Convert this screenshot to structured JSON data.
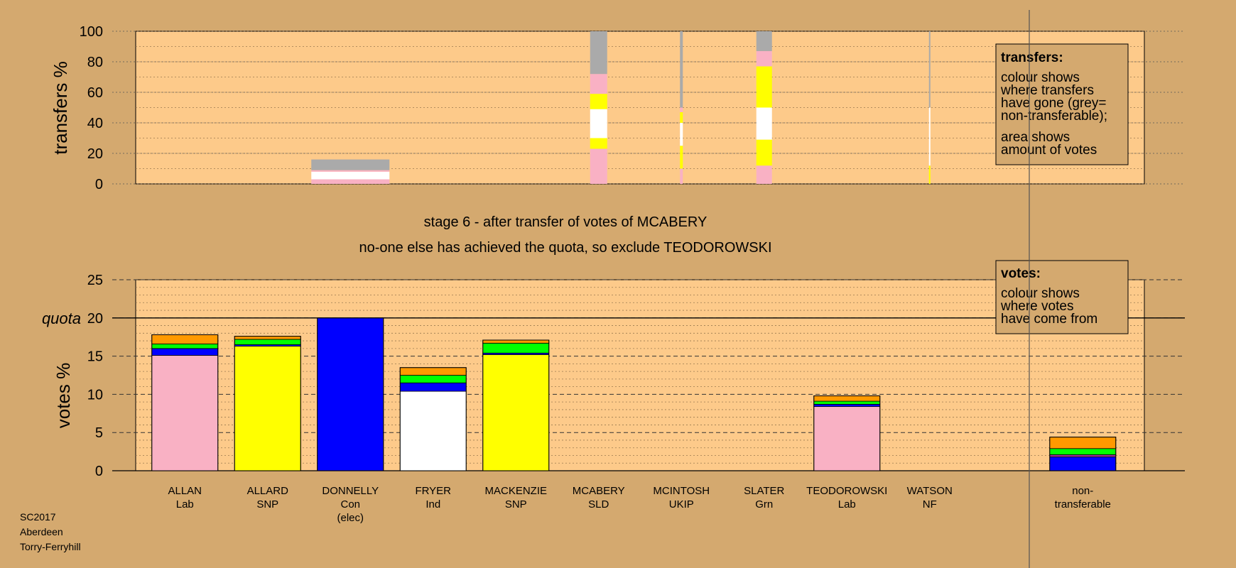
{
  "chart_data": [
    {
      "type": "bar",
      "stacked": true,
      "panel": "transfers",
      "ylabel": "transfers %",
      "ylim": [
        0,
        100
      ],
      "yticks": [
        0,
        20,
        40,
        60,
        80,
        100
      ],
      "legend": {
        "placement": "top-right",
        "title": "transfers:",
        "lines1": [
          "colour shows",
          "where transfers",
          "have gone (grey=",
          "non-transferable);"
        ],
        "lines2": [
          "area shows",
          "amount of votes"
        ]
      },
      "bars": [
        {
          "candidate": "DONNELLY",
          "segments": [
            {
              "party": "Lab",
              "from": 0,
              "to": 3
            },
            {
              "party": "Ind",
              "from": 3,
              "to": 8
            },
            {
              "party": "Lab",
              "from": 8,
              "to": 9
            },
            {
              "party": "non",
              "from": 9,
              "to": 16
            }
          ]
        },
        {
          "candidate": "MCABERY",
          "segments": [
            {
              "party": "Lab",
              "from": 0,
              "to": 23
            },
            {
              "party": "SNP",
              "from": 23,
              "to": 30
            },
            {
              "party": "Ind",
              "from": 30,
              "to": 49
            },
            {
              "party": "SNP",
              "from": 49,
              "to": 59
            },
            {
              "party": "Lab",
              "from": 59,
              "to": 72
            },
            {
              "party": "non",
              "from": 72,
              "to": 100
            }
          ]
        },
        {
          "candidate": "MCINTOSH",
          "segments": [
            {
              "party": "Lab",
              "from": 0,
              "to": 10
            },
            {
              "party": "SNP",
              "from": 10,
              "to": 25
            },
            {
              "party": "Ind",
              "from": 25,
              "to": 40
            },
            {
              "party": "SNP",
              "from": 40,
              "to": 47
            },
            {
              "party": "Lab",
              "from": 47,
              "to": 50
            },
            {
              "party": "non",
              "from": 50,
              "to": 100
            }
          ]
        },
        {
          "candidate": "SLATER",
          "segments": [
            {
              "party": "Lab",
              "from": 0,
              "to": 12
            },
            {
              "party": "SNP",
              "from": 12,
              "to": 29
            },
            {
              "party": "Ind",
              "from": 29,
              "to": 50
            },
            {
              "party": "SNP",
              "from": 50,
              "to": 77
            },
            {
              "party": "Lab",
              "from": 77,
              "to": 87
            },
            {
              "party": "non",
              "from": 87,
              "to": 100
            }
          ]
        },
        {
          "candidate": "WATSON",
          "segments": [
            {
              "party": "SNP",
              "from": 0,
              "to": 12
            },
            {
              "party": "Ind",
              "from": 12,
              "to": 50
            },
            {
              "party": "non",
              "from": 50,
              "to": 100
            }
          ]
        }
      ]
    },
    {
      "type": "bar",
      "stacked": true,
      "panel": "votes",
      "ylabel": "votes %",
      "ylim": [
        0,
        25
      ],
      "yticks": [
        0,
        5,
        10,
        15,
        20,
        25
      ],
      "quota": 20,
      "quota_label": "quota",
      "legend": {
        "placement": "top-right",
        "title": "votes:",
        "lines": [
          "colour shows",
          "where votes",
          "have come from"
        ]
      },
      "bars": [
        {
          "candidate": "ALLAN",
          "party": "Lab",
          "segments": [
            {
              "party": "Lab",
              "value": 15.1
            },
            {
              "party": "Con",
              "value": 0.9
            },
            {
              "party": "Grn",
              "value": 0.6
            },
            {
              "party": "UKIP",
              "value": 1.2
            }
          ]
        },
        {
          "candidate": "ALLARD",
          "party": "SNP",
          "segments": [
            {
              "party": "SNP",
              "value": 16.3
            },
            {
              "party": "Con",
              "value": 0.2
            },
            {
              "party": "Grn",
              "value": 0.7
            },
            {
              "party": "UKIP",
              "value": 0.4
            }
          ]
        },
        {
          "candidate": "DONNELLY",
          "party": "Con",
          "segments": [
            {
              "party": "Con",
              "value": 20.0
            }
          ]
        },
        {
          "candidate": "FRYER",
          "party": "Ind",
          "segments": [
            {
              "party": "Ind",
              "value": 10.4
            },
            {
              "party": "Con",
              "value": 1.1
            },
            {
              "party": "Grn",
              "value": 1.0
            },
            {
              "party": "UKIP",
              "value": 1.0
            }
          ]
        },
        {
          "candidate": "MACKENZIE",
          "party": "SNP",
          "segments": [
            {
              "party": "SNP",
              "value": 15.2
            },
            {
              "party": "Con",
              "value": 0.2
            },
            {
              "party": "Grn",
              "value": 1.3
            },
            {
              "party": "UKIP",
              "value": 0.4
            }
          ]
        },
        {
          "candidate": "MCABERY",
          "party": "SLD",
          "segments": []
        },
        {
          "candidate": "MCINTOSH",
          "party": "UKIP",
          "segments": []
        },
        {
          "candidate": "SLATER",
          "party": "Grn",
          "segments": []
        },
        {
          "candidate": "TEODOROWSKI",
          "party": "Lab",
          "segments": [
            {
              "party": "Lab",
              "value": 8.4
            },
            {
              "party": "Con",
              "value": 0.3
            },
            {
              "party": "Grn",
              "value": 0.4
            },
            {
              "party": "UKIP",
              "value": 0.7
            }
          ]
        },
        {
          "candidate": "WATSON",
          "party": "NF",
          "segments": []
        },
        {
          "candidate": "non-transferable",
          "party": "",
          "segments": [
            {
              "party": "Con",
              "value": 1.8
            },
            {
              "party": "SLD",
              "value": 0.3
            },
            {
              "party": "Grn",
              "value": 0.8
            },
            {
              "party": "UKIP",
              "value": 1.5
            }
          ]
        }
      ]
    }
  ],
  "candidates": [
    {
      "name": "ALLAN",
      "party": "Lab"
    },
    {
      "name": "ALLARD",
      "party": "SNP"
    },
    {
      "name": "DONNELLY",
      "party": "Con",
      "note": "(elec)"
    },
    {
      "name": "FRYER",
      "party": "Ind"
    },
    {
      "name": "MACKENZIE",
      "party": "SNP"
    },
    {
      "name": "MCABERY",
      "party": "SLD"
    },
    {
      "name": "MCINTOSH",
      "party": "UKIP"
    },
    {
      "name": "SLATER",
      "party": "Grn"
    },
    {
      "name": "TEODOROWSKI",
      "party": "Lab"
    },
    {
      "name": "WATSON",
      "party": "NF"
    }
  ],
  "nontransferable_label": [
    "non-",
    "transferable"
  ],
  "stage_text": "stage 6 - after transfer of votes of MCABERY",
  "stage_note": "no-one else has achieved the quota, so exclude TEODOROWSKI",
  "footer": [
    "SC2017",
    "Aberdeen",
    "Torry-Ferryhill"
  ],
  "colors": {
    "background": "#d4a96f",
    "plot": "#fdca8a",
    "Lab": "#f9b1c4",
    "SNP": "#ffff00",
    "Con": "#0000ff",
    "Ind": "#ffffff",
    "Grn": "#00ff00",
    "UKIP": "#ff9900",
    "SLD": "#993399",
    "NF": "#804000",
    "non": "#aaaaaa"
  }
}
